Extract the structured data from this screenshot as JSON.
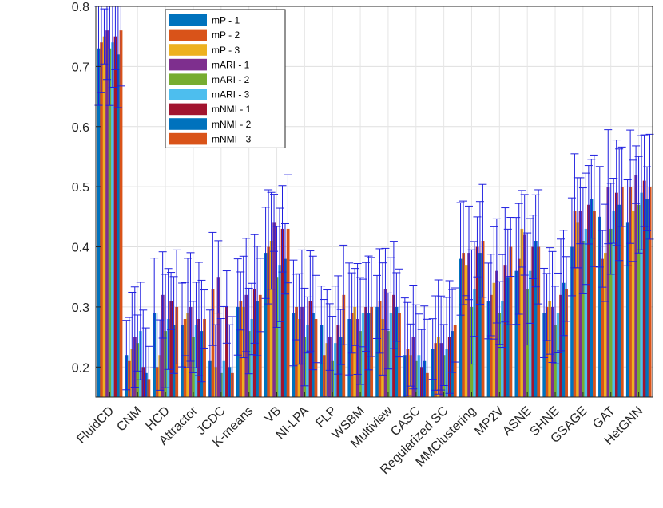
{
  "chart_data": {
    "type": "bar",
    "title": "",
    "xlabel": "",
    "ylabel": "",
    "ylim": [
      0.15,
      0.8
    ],
    "yticks": [
      0.2,
      0.3,
      0.4,
      0.5,
      0.6,
      0.7,
      0.8
    ],
    "grid": true,
    "legend_position": "top-left",
    "categories": [
      "FluidCD",
      "CNM",
      "HCD",
      "Attractor",
      "JCDC",
      "K-means",
      "VB",
      "NI-LPA",
      "FLP",
      "WSBM",
      "Multiview",
      "CASC",
      "Regularized SC",
      "MMClustering",
      "MP2V",
      "ASNE",
      "SHNE",
      "GSAGE",
      "GAT",
      "HetGNN"
    ],
    "series": [
      {
        "name": "mP - 1",
        "color": "#0072BD",
        "values": [
          0.73,
          0.22,
          0.29,
          0.27,
          0.21,
          0.3,
          0.39,
          0.29,
          0.27,
          0.28,
          0.3,
          0.22,
          0.23,
          0.38,
          0.31,
          0.36,
          0.29,
          0.4,
          0.45,
          0.44
        ]
      },
      {
        "name": "mP - 2",
        "color": "#D95319",
        "values": [
          0.74,
          0.21,
          0.2,
          0.28,
          0.33,
          0.31,
          0.4,
          0.3,
          0.22,
          0.29,
          0.31,
          0.23,
          0.24,
          0.39,
          0.32,
          0.38,
          0.3,
          0.46,
          0.38,
          0.5
        ]
      },
      {
        "name": "mP - 3",
        "color": "#EDB120",
        "values": [
          0.75,
          0.23,
          0.22,
          0.29,
          0.2,
          0.3,
          0.41,
          0.28,
          0.24,
          0.3,
          0.28,
          0.22,
          0.25,
          0.37,
          0.34,
          0.43,
          0.31,
          0.44,
          0.39,
          0.46
        ]
      },
      {
        "name": "mARI - 1",
        "color": "#7E2F8E",
        "values": [
          0.76,
          0.25,
          0.32,
          0.3,
          0.35,
          0.32,
          0.44,
          0.3,
          0.25,
          0.28,
          0.33,
          0.25,
          0.24,
          0.39,
          0.36,
          0.42,
          0.3,
          0.46,
          0.5,
          0.52
        ]
      },
      {
        "name": "mARI - 2",
        "color": "#77AC30",
        "values": [
          0.73,
          0.24,
          0.26,
          0.25,
          0.19,
          0.26,
          0.35,
          0.25,
          0.21,
          0.26,
          0.26,
          0.21,
          0.22,
          0.3,
          0.29,
          0.33,
          0.27,
          0.41,
          0.43,
          0.47
        ]
      },
      {
        "name": "mARI - 3",
        "color": "#4DBEEE",
        "values": [
          0.74,
          0.26,
          0.28,
          0.27,
          0.21,
          0.28,
          0.37,
          0.27,
          0.24,
          0.29,
          0.29,
          0.22,
          0.23,
          0.33,
          0.31,
          0.36,
          0.29,
          0.43,
          0.46,
          0.49
        ]
      },
      {
        "name": "mNMI - 1",
        "color": "#A2142F",
        "values": [
          0.75,
          0.2,
          0.31,
          0.28,
          0.3,
          0.33,
          0.43,
          0.31,
          0.27,
          0.3,
          0.32,
          0.2,
          0.25,
          0.4,
          0.37,
          0.4,
          0.32,
          0.47,
          0.49,
          0.51
        ]
      },
      {
        "name": "mNMI - 2",
        "color": "#0072BD",
        "values": [
          0.72,
          0.19,
          0.27,
          0.26,
          0.2,
          0.31,
          0.38,
          0.29,
          0.25,
          0.29,
          0.3,
          0.21,
          0.26,
          0.39,
          0.35,
          0.41,
          0.34,
          0.48,
          0.47,
          0.48
        ]
      },
      {
        "name": "mNMI - 3",
        "color": "#D95319",
        "values": [
          0.76,
          0.18,
          0.3,
          0.28,
          0.19,
          0.32,
          0.43,
          0.28,
          0.32,
          0.3,
          0.29,
          0.19,
          0.27,
          0.41,
          0.4,
          0.4,
          0.33,
          0.46,
          0.5,
          0.5
        ]
      }
    ]
  }
}
